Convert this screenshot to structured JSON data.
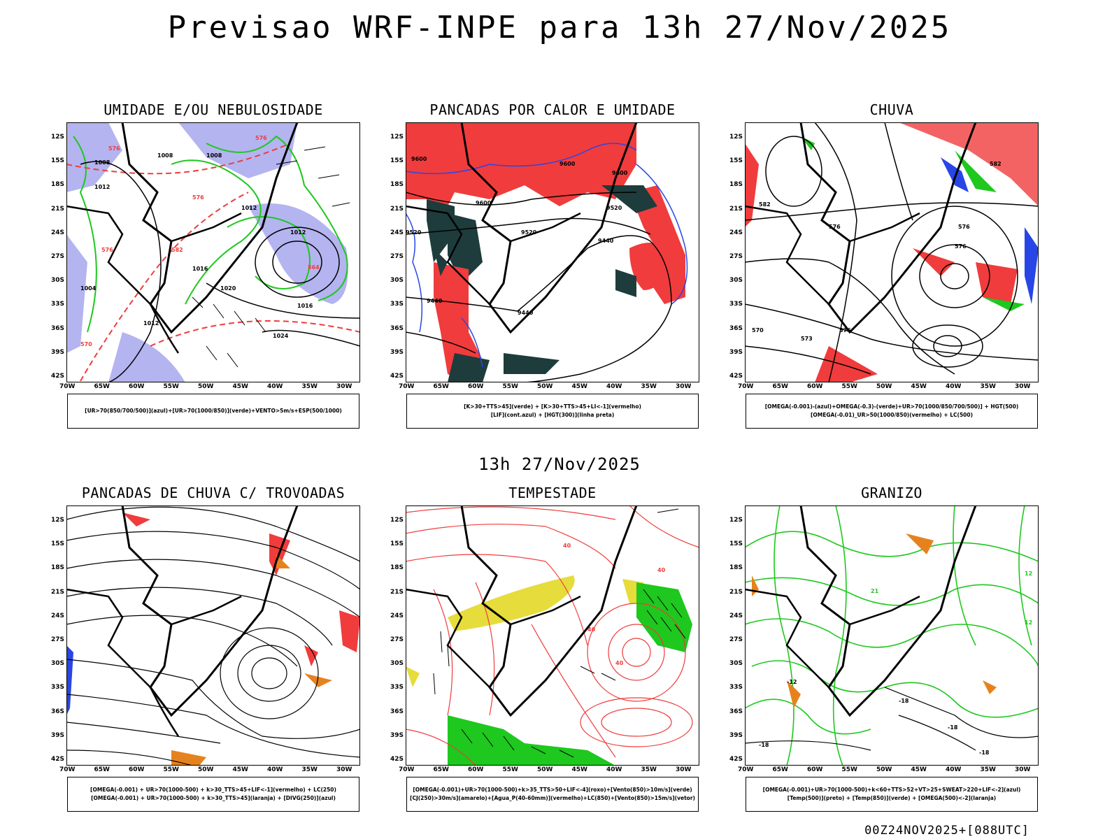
{
  "title": "Previsao WRF-INPE  para 13h 27/Nov/2025",
  "mid_title": "13h 27/Nov/2025",
  "footer": "00Z24NOV2025+[088UTC]",
  "lat_labels": [
    "12S",
    "15S",
    "18S",
    "21S",
    "24S",
    "27S",
    "30S",
    "33S",
    "36S",
    "39S",
    "42S"
  ],
  "lon_labels": [
    "70W",
    "65W",
    "60W",
    "55W",
    "50W",
    "45W",
    "40W",
    "35W",
    "30W"
  ],
  "panels": [
    {
      "title": "UMIDADE E/OU NEBULOSIDADE",
      "legend": [
        "[UR>70(850/700/500)](azul)+[UR>70(1000/850)](verde)+VENTO>5m/s+ESP(500/1000)"
      ],
      "contour_labels": [
        "1008",
        "1008",
        "1008",
        "1012",
        "1012",
        "1012",
        "1016",
        "1020",
        "1024",
        "1004",
        "1012",
        "1016",
        "576",
        "576",
        "576",
        "576",
        "564",
        "582",
        "570"
      ]
    },
    {
      "title": "PANCADAS POR CALOR E UMIDADE",
      "legend": [
        "[K>30+TTS>45](verde) + [K>30+TTS>45+LI<-1](vermelho)",
        "[LIF](cont.azul) + [HGT(300)](linha preta)"
      ],
      "contour_labels": [
        "9600",
        "9600",
        "9600",
        "9520",
        "9520",
        "9520",
        "9440",
        "9440",
        "9440",
        "9600"
      ]
    },
    {
      "title": "CHUVA",
      "legend": [
        "[OMEGA(-0.001)-(azul)+OMEGA(-0.3)-(verde)+UR>70(1000/850/700/500)] + HGT(500)",
        "[OMEGA(-0.01)_UR>50(1000/850)(vermelho) + LC(500)"
      ],
      "contour_labels": [
        "582",
        "582",
        "576",
        "576",
        "576",
        "573",
        "570",
        "576"
      ]
    },
    {
      "title": "PANCADAS DE CHUVA C/ TROVOADAS",
      "legend": [
        "[OMEGA(-0.001) + UR>70(1000-500) + k>30_TTS>45+LIF<-1](vermelho) + LC(250)",
        "[OMEGA(-0.001) + UR>70(1000-500) + k>30_TTS>45](laranja) + [DIVG(250)](azul)"
      ],
      "contour_labels": []
    },
    {
      "title": "TEMPESTADE",
      "legend": [
        "[OMEGA(-0.001)+UR>70(1000-500)+k>35_TTS>50+LIF<-4](roxo)+[Vento(850)>10m/s](verde)",
        "[CJ(250)>30m/s](amarelo)+[Agua_P(40-60mm)](vermelho)+LC(850)+[Vento(850)>15m/s](vetor)"
      ],
      "contour_labels": [
        "40",
        "40",
        "40",
        "40"
      ]
    },
    {
      "title": "GRANIZO",
      "legend": [
        "[OMEGA(-0.001)+UR>70(1000-500)+k<60+TTS>52+VT>25+SWEAT>220+LIF<-2](azul)",
        "[Temp(500)](preto) + [Temp(850)](verde) + [OMEGA(500)<-2](laranja)"
      ],
      "contour_labels": [
        "12",
        "12",
        "-18",
        "-18",
        "-18",
        "-18",
        "-12",
        "21"
      ]
    }
  ],
  "colors": {
    "red": "#f03c3c",
    "green": "#1ec81e",
    "blue": "#2846e6",
    "lavender": "#b4b4f0",
    "darkgreen": "#1e3c3c",
    "yellow": "#e6dc3c",
    "orange": "#e6821e"
  }
}
